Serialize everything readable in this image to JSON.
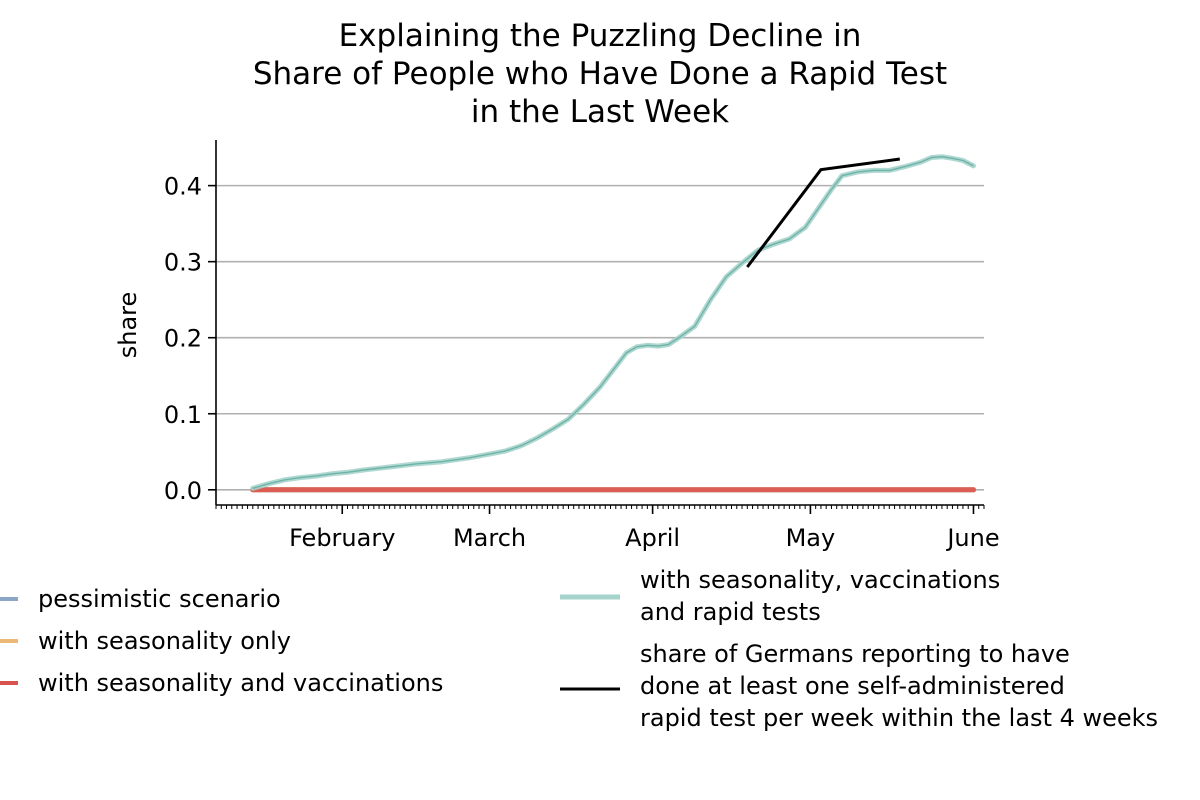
{
  "chart_data": {
    "type": "line",
    "title_lines": [
      "Explaining the Puzzling Decline in",
      "Share of People who Have Done a Rapid Test",
      "in the Last Week"
    ],
    "xlabel": "",
    "ylabel": "share",
    "ylim": [
      -0.02,
      0.46
    ],
    "yticks": [
      0.0,
      0.1,
      0.2,
      0.3,
      0.4
    ],
    "ytick_labels": [
      "0.0",
      "0.1",
      "0.2",
      "0.3",
      "0.4"
    ],
    "xlim": [
      "2021-01-08",
      "2021-06-03"
    ],
    "xticks": [
      {
        "date": "2021-02-01",
        "label": "February"
      },
      {
        "date": "2021-03-01",
        "label": "March"
      },
      {
        "date": "2021-04-01",
        "label": "April"
      },
      {
        "date": "2021-05-01",
        "label": "May"
      },
      {
        "date": "2021-06-01",
        "label": "June"
      }
    ],
    "grid": "horizontal",
    "legend_placement": "below",
    "series": [
      {
        "name": "pessimistic scenario",
        "color": "#8ba6c4",
        "style": "band",
        "x": [
          "2021-01-15",
          "2021-06-01"
        ],
        "y": [
          0.0,
          0.0
        ]
      },
      {
        "name": "with seasonality only",
        "color": "#ecb876",
        "style": "band",
        "x": [
          "2021-01-15",
          "2021-06-01"
        ],
        "y": [
          0.0,
          0.0
        ]
      },
      {
        "name": "with seasonality and vaccinations",
        "color": "#d9534f",
        "style": "band",
        "x": [
          "2021-01-15",
          "2021-06-01"
        ],
        "y": [
          0.0,
          0.0
        ]
      },
      {
        "name": "with seasonality, vaccinations\nand rapid tests",
        "color": "#a6d4cc",
        "style": "band",
        "x": [
          "2021-01-15",
          "2021-01-18",
          "2021-01-21",
          "2021-01-24",
          "2021-01-27",
          "2021-01-30",
          "2021-02-02",
          "2021-02-05",
          "2021-02-10",
          "2021-02-15",
          "2021-02-20",
          "2021-02-25",
          "2021-03-01",
          "2021-03-04",
          "2021-03-07",
          "2021-03-10",
          "2021-03-13",
          "2021-03-16",
          "2021-03-19",
          "2021-03-22",
          "2021-03-25",
          "2021-03-27",
          "2021-03-29",
          "2021-03-31",
          "2021-04-02",
          "2021-04-04",
          "2021-04-06",
          "2021-04-09",
          "2021-04-12",
          "2021-04-15",
          "2021-04-18",
          "2021-04-21",
          "2021-04-24",
          "2021-04-27",
          "2021-04-30",
          "2021-05-02",
          "2021-05-05",
          "2021-05-07",
          "2021-05-10",
          "2021-05-13",
          "2021-05-16",
          "2021-05-19",
          "2021-05-22",
          "2021-05-24",
          "2021-05-26",
          "2021-05-28",
          "2021-05-30",
          "2021-06-01"
        ],
        "y": [
          0.002,
          0.008,
          0.013,
          0.016,
          0.018,
          0.021,
          0.023,
          0.026,
          0.03,
          0.034,
          0.037,
          0.042,
          0.047,
          0.051,
          0.058,
          0.068,
          0.08,
          0.093,
          0.113,
          0.135,
          0.162,
          0.18,
          0.188,
          0.19,
          0.189,
          0.191,
          0.2,
          0.215,
          0.25,
          0.28,
          0.298,
          0.315,
          0.323,
          0.33,
          0.345,
          0.365,
          0.395,
          0.413,
          0.418,
          0.42,
          0.42,
          0.425,
          0.431,
          0.437,
          0.438,
          0.436,
          0.433,
          0.426
        ]
      },
      {
        "name": "share of Germans reporting to have\ndone at least one self-administered\nrapid test per week within the last 4 weeks",
        "color": "#000000",
        "style": "line",
        "x": [
          "2021-04-19",
          "2021-05-03",
          "2021-05-18"
        ],
        "y": [
          0.293,
          0.421,
          0.435
        ]
      }
    ]
  }
}
